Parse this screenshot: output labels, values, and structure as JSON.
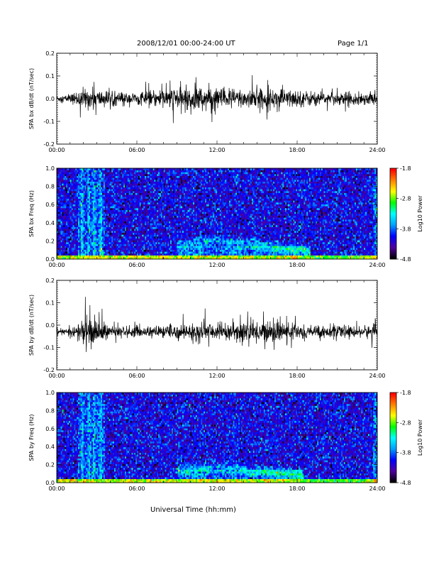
{
  "header": {
    "title": "2008/12/01   00:00-24:00 UT",
    "page": "Page 1/1"
  },
  "chart_data": [
    {
      "type": "line",
      "ylabel": "SPA bx dB/dt (nT/sec)",
      "xlim": [
        0,
        24
      ],
      "ylim": [
        -0.2,
        0.2
      ],
      "x_ticks": [
        "00:00",
        "06:00",
        "12:00",
        "18:00",
        "24:00"
      ],
      "y_ticks": [
        "-0.2",
        "-0.1",
        "0.0",
        "0.1",
        "0.2"
      ],
      "series": [
        {
          "x": [
            0,
            1,
            1.5,
            2,
            3,
            4,
            5,
            6,
            7,
            8,
            9,
            10,
            11,
            12,
            13,
            14,
            15,
            16,
            17,
            18,
            19,
            20,
            21,
            22,
            23,
            24
          ],
          "envelope": [
            0.015,
            0.02,
            0.035,
            0.05,
            0.045,
            0.035,
            0.03,
            0.03,
            0.035,
            0.045,
            0.055,
            0.06,
            0.06,
            0.055,
            0.05,
            0.05,
            0.05,
            0.045,
            0.045,
            0.04,
            0.035,
            0.03,
            0.03,
            0.03,
            0.03,
            0.03
          ],
          "offset": 0.0
        }
      ]
    },
    {
      "type": "heatmap",
      "ylabel": "SPA bx Freq (Hz)",
      "xlim": [
        0,
        24
      ],
      "ylim": [
        0.0,
        1.0
      ],
      "x_ticks": [
        "00:00",
        "06:00",
        "12:00",
        "18:00",
        "24:00"
      ],
      "y_ticks": [
        "0.0",
        "0.2",
        "0.4",
        "0.6",
        "0.8",
        "1.0"
      ],
      "colorbar": {
        "label": "Log10 Power",
        "ticks": [
          "-1.8",
          "-2.8",
          "-3.8",
          "-4.8"
        ],
        "range": [
          -4.8,
          -1.8
        ]
      },
      "colors": [
        "#000000",
        "#5000a0",
        "#0000ff",
        "#00a0ff",
        "#00ffff",
        "#00ff00",
        "#ffff00",
        "#ff8000",
        "#ff0000"
      ],
      "features": [
        {
          "kind": "burst",
          "t_start": 1.6,
          "t_end": 3.6,
          "level": -3.0
        },
        {
          "kind": "band",
          "t_start": 9.0,
          "t_end": 19.0,
          "f_from": 0.05,
          "f_to": 0.3,
          "level": -3.3
        },
        {
          "kind": "base",
          "f_max": 0.05,
          "level": -2.6
        }
      ]
    },
    {
      "type": "line",
      "ylabel": "SPA by dB/dt (nT/sec)",
      "xlim": [
        0,
        24
      ],
      "ylim": [
        -0.2,
        0.2
      ],
      "x_ticks": [
        "00:00",
        "06:00",
        "12:00",
        "18:00",
        "24:00"
      ],
      "y_ticks": [
        "-0.2",
        "-0.1",
        "0.0",
        "0.1",
        "0.2"
      ],
      "series": [
        {
          "x": [
            0,
            1,
            1.5,
            2,
            3,
            4,
            5,
            6,
            7,
            8,
            9,
            10,
            11,
            12,
            13,
            14,
            15,
            16,
            17,
            18,
            19,
            20,
            21,
            22,
            23,
            24
          ],
          "envelope": [
            0.012,
            0.015,
            0.04,
            0.07,
            0.06,
            0.03,
            0.025,
            0.025,
            0.025,
            0.03,
            0.035,
            0.04,
            0.04,
            0.04,
            0.045,
            0.05,
            0.055,
            0.05,
            0.045,
            0.035,
            0.03,
            0.03,
            0.028,
            0.028,
            0.03,
            0.03
          ],
          "offset": -0.03
        }
      ]
    },
    {
      "type": "heatmap",
      "ylabel": "SPA by Freq (Hz)",
      "xlim": [
        0,
        24
      ],
      "ylim": [
        0.0,
        1.0
      ],
      "x_ticks": [
        "00:00",
        "06:00",
        "12:00",
        "18:00",
        "24:00"
      ],
      "y_ticks": [
        "0.0",
        "0.2",
        "0.4",
        "0.6",
        "0.8",
        "1.0"
      ],
      "colorbar": {
        "label": "Log10 Power",
        "ticks": [
          "-1.8",
          "-2.8",
          "-3.8",
          "-4.8"
        ],
        "range": [
          -4.8,
          -1.8
        ]
      },
      "colors": [
        "#000000",
        "#5000a0",
        "#0000ff",
        "#00a0ff",
        "#00ffff",
        "#00ff00",
        "#ffff00",
        "#ff8000",
        "#ff0000"
      ],
      "features": [
        {
          "kind": "burst",
          "t_start": 1.6,
          "t_end": 3.6,
          "level": -3.0
        },
        {
          "kind": "band",
          "t_start": 9.0,
          "t_end": 18.5,
          "f_from": 0.05,
          "f_to": 0.25,
          "level": -3.3
        },
        {
          "kind": "base",
          "f_max": 0.05,
          "level": -2.6
        }
      ]
    }
  ],
  "xaxis_title": "Universal Time (hh:mm)"
}
